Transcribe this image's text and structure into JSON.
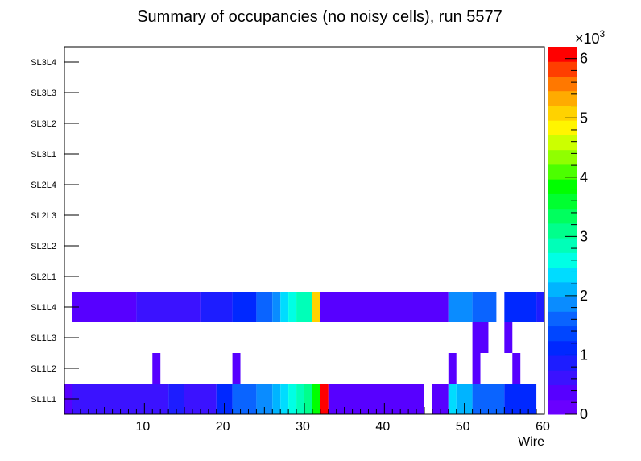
{
  "chart_data": {
    "type": "heatmap",
    "title": "Summary of occupancies (no noisy cells), run 5577",
    "xlabel": "Wire",
    "ylabel": "",
    "xlim": [
      0,
      60
    ],
    "x_ticks": [
      10,
      20,
      30,
      40,
      50,
      60
    ],
    "y_categories": [
      "SL1L1",
      "SL1L2",
      "SL1L3",
      "SL1L4",
      "SL2L1",
      "SL2L2",
      "SL2L3",
      "SL2L4",
      "SL3L1",
      "SL3L2",
      "SL3L3",
      "SL3L4"
    ],
    "colorbar": {
      "zlim": [
        0,
        6200
      ],
      "ticks": [
        0,
        1,
        2,
        3,
        4,
        5,
        6
      ],
      "multiplier_label": "×10",
      "multiplier_exponent": "3",
      "palette": [
        "#6a00ff",
        "#5700ff",
        "#3b12ff",
        "#1d1dff",
        "#0028ff",
        "#0046ff",
        "#0a64ff",
        "#0a8cff",
        "#00b4ff",
        "#00dcff",
        "#00ffe5",
        "#00ffb8",
        "#00ff8c",
        "#00ff5e",
        "#00ff30",
        "#00ff00",
        "#4cff00",
        "#90ff00",
        "#ccff00",
        "#fff500",
        "#ffd200",
        "#ffab00",
        "#ff7800",
        "#ff3e00",
        "#ff0000"
      ]
    },
    "cells": {
      "SL1L1": [
        [
          0,
          1,
          250
        ],
        [
          1,
          13,
          550
        ],
        [
          13,
          15,
          950
        ],
        [
          15,
          19,
          650
        ],
        [
          19,
          21,
          1150
        ],
        [
          21,
          24,
          1700
        ],
        [
          24,
          26,
          1950
        ],
        [
          26,
          27,
          2150
        ],
        [
          27,
          28,
          2250
        ],
        [
          28,
          29,
          2500
        ],
        [
          29,
          30,
          2750
        ],
        [
          30,
          31,
          3150
        ],
        [
          31,
          32,
          3900
        ],
        [
          32,
          33,
          6200
        ],
        [
          33,
          45,
          450
        ],
        [
          46,
          48,
          450
        ],
        [
          48,
          49,
          2250
        ],
        [
          49,
          51,
          2000
        ],
        [
          51,
          55,
          1700
        ],
        [
          55,
          59,
          1150
        ]
      ],
      "SL1L2": [
        [
          11,
          12,
          300
        ],
        [
          21,
          22,
          300
        ],
        [
          48,
          49,
          300
        ],
        [
          51,
          52,
          300
        ],
        [
          56,
          57,
          300
        ]
      ],
      "SL1L3": [
        [
          51,
          53,
          300
        ],
        [
          55,
          56,
          300
        ]
      ],
      "SL1L4": [
        [
          1,
          9,
          350
        ],
        [
          9,
          17,
          550
        ],
        [
          17,
          21,
          850
        ],
        [
          21,
          24,
          1150
        ],
        [
          24,
          26,
          1650
        ],
        [
          26,
          27,
          1950
        ],
        [
          27,
          28,
          2250
        ],
        [
          28,
          29,
          2500
        ],
        [
          29,
          31,
          2800
        ],
        [
          31,
          32,
          5200
        ],
        [
          32,
          48,
          350
        ],
        [
          48,
          51,
          1950
        ],
        [
          51,
          54,
          1700
        ],
        [
          55,
          59,
          1150
        ],
        [
          59,
          60,
          850
        ]
      ]
    }
  }
}
